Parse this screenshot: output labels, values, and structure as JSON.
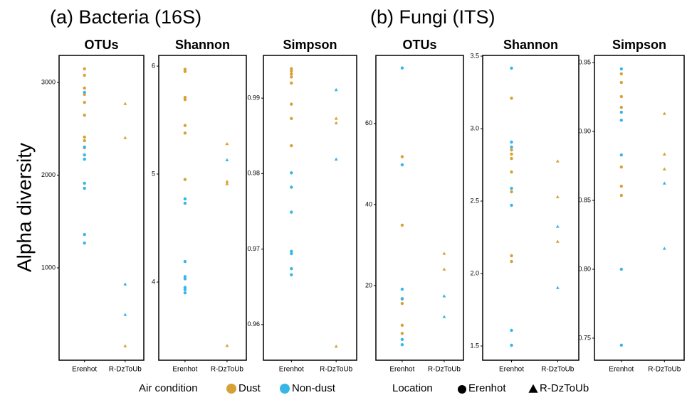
{
  "figure": {
    "group_titles": [
      "(a) Bacteria (16S)",
      "(b) Fungi (ITS)"
    ],
    "ylabel": "Alpha diversity",
    "condition_title": "Air condition",
    "location_title": "Location",
    "location_markers": [
      "circle",
      "triangle"
    ]
  },
  "chart_data": [
    {
      "type": "scatter",
      "title": "OTUs",
      "categories": [
        "Erenhot",
        "R-DzToUb"
      ],
      "ylim": [
        4,
        3291
      ],
      "yticks": [
        1000,
        2000,
        3000
      ],
      "series": [
        {
          "name": "Dust",
          "color": "#d6a236",
          "x": [
            "Erenhot",
            "Erenhot",
            "Erenhot",
            "Erenhot",
            "Erenhot",
            "Erenhot",
            "Erenhot",
            "Erenhot",
            "Erenhot",
            "R-DzToUb",
            "R-DzToUb",
            "R-DzToUb"
          ],
          "values": [
            3146,
            3077,
            2939,
            2870,
            2785,
            2647,
            2410,
            2372,
            2295,
            2770,
            2402,
            157
          ]
        },
        {
          "name": "Non-dust",
          "color": "#36b7e6",
          "x": [
            "Erenhot",
            "Erenhot",
            "Erenhot",
            "Erenhot",
            "Erenhot",
            "Erenhot",
            "Erenhot",
            "Erenhot",
            "R-DzToUb",
            "R-DzToUb"
          ],
          "values": [
            2893,
            2303,
            2218,
            2172,
            1912,
            1858,
            1360,
            1268,
            824,
            494
          ]
        }
      ]
    },
    {
      "type": "scatter",
      "title": "Shannon",
      "categories": [
        "Erenhot",
        "R-DzToUb"
      ],
      "ylim": [
        3.276,
        6.099
      ],
      "yticks": [
        4,
        5,
        6
      ],
      "series": [
        {
          "name": "Dust",
          "color": "#d6a236",
          "x": [
            "Erenhot",
            "Erenhot",
            "Erenhot",
            "Erenhot",
            "Erenhot",
            "Erenhot",
            "Erenhot",
            "R-DzToUb",
            "R-DzToUb",
            "R-DzToUb",
            "R-DzToUb"
          ],
          "values": [
            5.97,
            5.95,
            5.71,
            5.69,
            5.45,
            5.38,
            4.95,
            5.28,
            4.93,
            4.91,
            3.41
          ]
        },
        {
          "name": "Non-dust",
          "color": "#36b7e6",
          "x": [
            "Erenhot",
            "Erenhot",
            "Erenhot",
            "Erenhot",
            "Erenhot",
            "Erenhot",
            "Erenhot",
            "Erenhot",
            "R-DzToUb"
          ],
          "values": [
            4.77,
            4.73,
            4.19,
            4.05,
            4.03,
            3.95,
            3.93,
            3.9,
            5.13
          ]
        }
      ]
    },
    {
      "type": "scatter",
      "title": "Simpson",
      "categories": [
        "Erenhot",
        "R-DzToUb"
      ],
      "ylim": [
        0.95528,
        0.99566
      ],
      "yticks": [
        {
          "value": 0.96,
          "label": "0.96"
        },
        {
          "value": 0.97,
          "label": "0.97"
        },
        {
          "value": 0.98,
          "label": "0.98"
        },
        {
          "value": 0.99,
          "label": "0.99"
        }
      ],
      "series": [
        {
          "name": "Dust",
          "color": "#d6a236",
          "x": [
            "Erenhot",
            "Erenhot",
            "Erenhot",
            "Erenhot",
            "Erenhot",
            "Erenhot",
            "Erenhot",
            "Erenhot",
            "R-DzToUb",
            "R-DzToUb",
            "R-DzToUb"
          ],
          "values": [
            0.9939,
            0.9936,
            0.9932,
            0.9928,
            0.992,
            0.9892,
            0.9873,
            0.9837,
            0.9873,
            0.9867,
            0.9571
          ]
        },
        {
          "name": "Non-dust",
          "color": "#36b7e6",
          "x": [
            "Erenhot",
            "Erenhot",
            "Erenhot",
            "Erenhot",
            "Erenhot",
            "Erenhot",
            "Erenhot",
            "R-DzToUb",
            "R-DzToUb"
          ],
          "values": [
            0.9801,
            0.9782,
            0.9749,
            0.9697,
            0.9694,
            0.9674,
            0.9666,
            0.9911,
            0.9819
          ]
        }
      ]
    },
    {
      "type": "scatter",
      "title": "OTUs",
      "categories": [
        "Erenhot",
        "R-DzToUb"
      ],
      "ylim": [
        1.58,
        76.8
      ],
      "yticks": [
        20,
        40,
        60
      ],
      "series": [
        {
          "name": "Dust",
          "color": "#d6a236",
          "x": [
            "Erenhot",
            "Erenhot",
            "Erenhot",
            "Erenhot",
            "Erenhot",
            "Erenhot",
            "R-DzToUb",
            "R-DzToUb"
          ],
          "values": [
            51.8,
            34.9,
            16.8,
            15.6,
            10.2,
            8.2,
            27.9,
            24.0
          ]
        },
        {
          "name": "Non-dust",
          "color": "#36b7e6",
          "x": [
            "Erenhot",
            "Erenhot",
            "Erenhot",
            "Erenhot",
            "Erenhot",
            "Erenhot",
            "R-DzToUb",
            "R-DzToUb"
          ],
          "values": [
            73.7,
            49.8,
            19.1,
            16.7,
            6.7,
            5.4,
            17.4,
            12.3
          ]
        }
      ]
    },
    {
      "type": "scatter",
      "title": "Shannon",
      "categories": [
        "Erenhot",
        "R-DzToUb"
      ],
      "ylim": [
        1.402,
        3.505
      ],
      "yticks": [
        {
          "value": 1.5,
          "label": "1.5"
        },
        {
          "value": 2,
          "label": "2.0"
        },
        {
          "value": 2.5,
          "label": "2.5"
        },
        {
          "value": 3,
          "label": "3.0"
        },
        {
          "value": 3.5,
          "label": "3.5"
        }
      ],
      "series": [
        {
          "name": "Dust",
          "color": "#d6a236",
          "x": [
            "Erenhot",
            "Erenhot",
            "Erenhot",
            "Erenhot",
            "Erenhot",
            "Erenhot",
            "Erenhot",
            "Erenhot",
            "R-DzToUb",
            "R-DzToUb",
            "R-DzToUb"
          ],
          "values": [
            3.21,
            2.853,
            2.824,
            2.794,
            2.701,
            2.564,
            2.123,
            2.083,
            2.775,
            2.529,
            2.221
          ]
        },
        {
          "name": "Non-dust",
          "color": "#36b7e6",
          "x": [
            "Erenhot",
            "Erenhot",
            "Erenhot",
            "Erenhot",
            "Erenhot",
            "Erenhot",
            "Erenhot",
            "R-DzToUb",
            "R-DzToUb"
          ],
          "values": [
            3.417,
            2.907,
            2.873,
            2.588,
            2.471,
            1.608,
            1.505,
            2.324,
            1.902
          ]
        }
      ]
    },
    {
      "type": "scatter",
      "title": "Simpson",
      "categories": [
        "Erenhot",
        "R-DzToUb"
      ],
      "ylim": [
        0.734,
        0.9552
      ],
      "yticks": [
        {
          "value": 0.75,
          "label": "0.75"
        },
        {
          "value": 0.8,
          "label": "0.80"
        },
        {
          "value": 0.85,
          "label": "0.85"
        },
        {
          "value": 0.9,
          "label": "0.90"
        },
        {
          "value": 0.95,
          "label": "0.95"
        }
      ],
      "series": [
        {
          "name": "Dust",
          "color": "#d6a236",
          "x": [
            "Erenhot",
            "Erenhot",
            "Erenhot",
            "Erenhot",
            "Erenhot",
            "Erenhot",
            "Erenhot",
            "R-DzToUb",
            "R-DzToUb",
            "R-DzToUb"
          ],
          "values": [
            0.9418,
            0.9356,
            0.9253,
            0.9175,
            0.8742,
            0.8603,
            0.8536,
            0.9129,
            0.8835,
            0.8727
          ]
        },
        {
          "name": "Non-dust",
          "color": "#36b7e6",
          "x": [
            "Erenhot",
            "Erenhot",
            "Erenhot",
            "Erenhot",
            "Erenhot",
            "Erenhot",
            "R-DzToUb",
            "R-DzToUb"
          ],
          "values": [
            0.9454,
            0.914,
            0.9082,
            0.883,
            0.8,
            0.7449,
            0.8624,
            0.815
          ]
        }
      ]
    }
  ]
}
